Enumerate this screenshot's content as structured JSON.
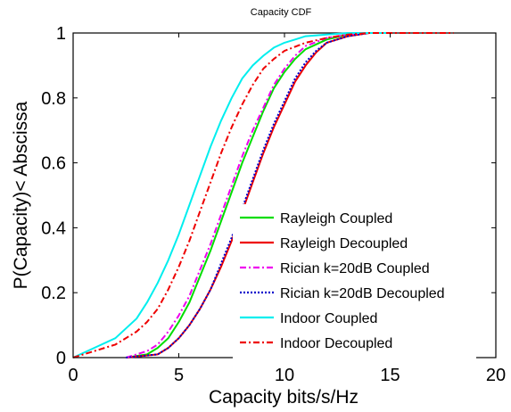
{
  "chart_data": {
    "type": "line",
    "title": "Capacity CDF",
    "xlabel": "Capacity bits/s/Hz",
    "ylabel": "P(Capacity)< Abscissa",
    "xlim": [
      0,
      20
    ],
    "ylim": [
      0,
      1
    ],
    "xticks": [
      0,
      5,
      10,
      15,
      20
    ],
    "yticks": [
      0,
      0.2,
      0.4,
      0.6,
      0.8,
      1
    ],
    "xtick_labels": [
      "0",
      "5",
      "10",
      "15",
      "20"
    ],
    "ytick_labels": [
      "0",
      "0.2",
      "0.4",
      "0.6",
      "0.8",
      "1"
    ],
    "grid": false,
    "legend_position": "bottom-right",
    "series": [
      {
        "name": "Rayleigh Coupled",
        "color": "#00dd00",
        "dash": "solid",
        "x": [
          2.5,
          3.5,
          4.0,
          4.5,
          5.0,
          5.5,
          6.0,
          6.5,
          7.0,
          7.5,
          8.0,
          8.5,
          9.0,
          9.5,
          10.0,
          10.5,
          11.0,
          12.0,
          13.0,
          14.0,
          15.0
        ],
        "y": [
          0.0,
          0.01,
          0.03,
          0.06,
          0.11,
          0.17,
          0.25,
          0.33,
          0.42,
          0.51,
          0.6,
          0.68,
          0.76,
          0.83,
          0.88,
          0.92,
          0.95,
          0.98,
          0.995,
          1.0,
          1.0
        ]
      },
      {
        "name": "Rayleigh Decoupled",
        "color": "#ee0000",
        "dash": "solid",
        "x": [
          2.5,
          4.0,
          4.5,
          5.0,
          5.5,
          6.0,
          6.5,
          7.0,
          7.5,
          8.0,
          8.5,
          9.0,
          9.5,
          10.0,
          10.5,
          11.0,
          11.5,
          12.0,
          13.0,
          14.0,
          15.0
        ],
        "y": [
          0.0,
          0.01,
          0.03,
          0.06,
          0.1,
          0.15,
          0.21,
          0.28,
          0.36,
          0.45,
          0.54,
          0.63,
          0.71,
          0.78,
          0.85,
          0.9,
          0.94,
          0.97,
          0.99,
          1.0,
          1.0
        ]
      },
      {
        "name": "Rician k=20dB Coupled",
        "color": "#ee00ee",
        "dash": "dashdot",
        "x": [
          2.5,
          3.5,
          4.0,
          4.5,
          5.0,
          5.5,
          6.0,
          6.5,
          7.0,
          7.5,
          8.0,
          8.5,
          9.0,
          9.5,
          10.0,
          10.5,
          11.0,
          12.0,
          13.0,
          14.0,
          15.0
        ],
        "y": [
          0.0,
          0.02,
          0.04,
          0.08,
          0.13,
          0.19,
          0.27,
          0.35,
          0.44,
          0.53,
          0.62,
          0.7,
          0.77,
          0.84,
          0.89,
          0.93,
          0.96,
          0.985,
          0.995,
          1.0,
          1.0
        ]
      },
      {
        "name": "Rician k=20dB Decoupled",
        "color": "#0000cc",
        "dash": "dotted",
        "x": [
          2.5,
          4.0,
          4.5,
          5.0,
          5.5,
          6.0,
          6.5,
          7.0,
          7.5,
          8.0,
          8.5,
          9.0,
          9.5,
          10.0,
          10.5,
          11.0,
          11.5,
          12.0,
          13.0,
          14.0,
          15.0
        ],
        "y": [
          0.0,
          0.01,
          0.03,
          0.06,
          0.1,
          0.15,
          0.21,
          0.29,
          0.37,
          0.46,
          0.55,
          0.64,
          0.72,
          0.79,
          0.86,
          0.91,
          0.945,
          0.97,
          0.99,
          1.0,
          1.0
        ]
      },
      {
        "name": "Indoor Coupled",
        "color": "#00eeee",
        "dash": "solid",
        "x": [
          0.0,
          1.0,
          2.0,
          3.0,
          3.5,
          4.0,
          4.5,
          5.0,
          5.5,
          6.0,
          6.5,
          7.0,
          7.5,
          8.0,
          8.5,
          9.0,
          9.5,
          10.0,
          10.5,
          11.0,
          12.0,
          13.0,
          14.0,
          15.0
        ],
        "y": [
          0.0,
          0.03,
          0.06,
          0.12,
          0.17,
          0.23,
          0.3,
          0.38,
          0.47,
          0.56,
          0.65,
          0.73,
          0.8,
          0.86,
          0.9,
          0.93,
          0.955,
          0.97,
          0.98,
          0.99,
          0.995,
          1.0,
          1.0,
          1.0
        ]
      },
      {
        "name": "Indoor Decoupled",
        "color": "#ee0000",
        "dash": "dashdot",
        "x": [
          0.0,
          1.0,
          2.0,
          3.0,
          3.5,
          4.0,
          4.5,
          5.0,
          5.5,
          6.0,
          6.5,
          7.0,
          7.5,
          8.0,
          8.5,
          9.0,
          9.5,
          10.0,
          11.0,
          12.0,
          13.0,
          14.0,
          15.0,
          18.0
        ],
        "y": [
          0.0,
          0.02,
          0.04,
          0.08,
          0.11,
          0.15,
          0.21,
          0.28,
          0.36,
          0.45,
          0.54,
          0.63,
          0.71,
          0.78,
          0.84,
          0.89,
          0.92,
          0.945,
          0.97,
          0.985,
          0.995,
          1.0,
          1.0,
          1.0
        ]
      }
    ]
  }
}
